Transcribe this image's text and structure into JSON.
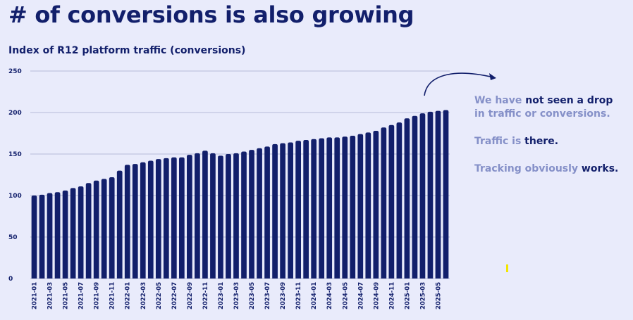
{
  "slide": {
    "title": "# of conversions is also growing"
  },
  "notes": {
    "line1_pre": "We have ",
    "line1_strong": "not seen a drop",
    "line2": "in traffic or conversions.",
    "traffic_pre": "Traffic is ",
    "traffic_strong": "there.",
    "tracking_pre": "Tracking obviously ",
    "tracking_strong": "works."
  },
  "colors": {
    "background": "#e9ebfb",
    "bar": "#121f6b",
    "accent_text": "#8590c8",
    "marker": "#f2e600"
  },
  "chart_data": {
    "type": "bar",
    "title": "Index of R12 platform traffic (conversions)",
    "xlabel": "",
    "ylabel": "",
    "ylim": [
      0,
      250
    ],
    "yticks": [
      0,
      50,
      100,
      150,
      200,
      250
    ],
    "grid": true,
    "categories": [
      "2021-01",
      "2021-02",
      "2021-03",
      "2021-04",
      "2021-05",
      "2021-06",
      "2021-07",
      "2021-08",
      "2021-09",
      "2021-10",
      "2021-11",
      "2021-12",
      "2022-01",
      "2022-02",
      "2022-03",
      "2022-04",
      "2022-05",
      "2022-06",
      "2022-07",
      "2022-08",
      "2022-09",
      "2022-10",
      "2022-11",
      "2022-12",
      "2023-01",
      "2023-02",
      "2023-03",
      "2023-04",
      "2023-05",
      "2023-06",
      "2023-07",
      "2023-08",
      "2023-09",
      "2023-10",
      "2023-11",
      "2023-12",
      "2024-01",
      "2024-02",
      "2024-03",
      "2024-04",
      "2024-05",
      "2024-06",
      "2024-07",
      "2024-08",
      "2024-09",
      "2024-10",
      "2024-11",
      "2024-12",
      "2025-01",
      "2025-02",
      "2025-03",
      "2025-04",
      "2025-05",
      "2025-06"
    ],
    "values": [
      100,
      101,
      103,
      104,
      106,
      109,
      111,
      115,
      118,
      120,
      122,
      130,
      137,
      138,
      140,
      142,
      144,
      145,
      146,
      146,
      149,
      151,
      154,
      151,
      148,
      150,
      151,
      153,
      155,
      157,
      159,
      162,
      163,
      164,
      166,
      167,
      168,
      169,
      170,
      170,
      171,
      172,
      174,
      176,
      178,
      182,
      185,
      188,
      193,
      196,
      199,
      201,
      202,
      203
    ],
    "xtick_labels": [
      "2021-01",
      "2021-03",
      "2021-05",
      "2021-07",
      "2021-09",
      "2021-11",
      "2022-01",
      "2022-03",
      "2022-05",
      "2022-07",
      "2022-09",
      "2022-11",
      "2023-01",
      "2023-03",
      "2023-05",
      "2023-07",
      "2023-09",
      "2023-11",
      "2024-01",
      "2024-03",
      "2024-05",
      "2024-07",
      "2024-09",
      "2024-11",
      "2025-01",
      "2025-03",
      "2025-05"
    ]
  }
}
